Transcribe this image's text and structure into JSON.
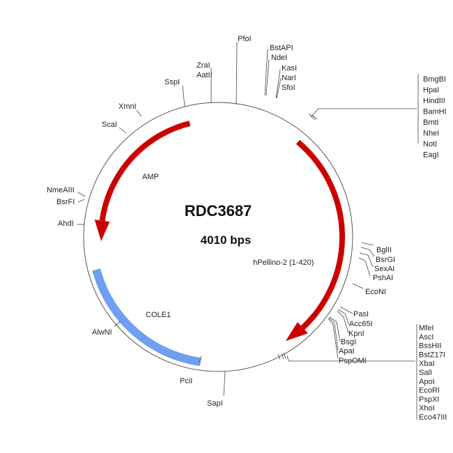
{
  "plasmid": {
    "name": "RDC3687",
    "size_label": "4010 bps"
  },
  "colors": {
    "backbone": "#555555",
    "arrow": "#cc0000",
    "ori": "#6f9ff0"
  },
  "features": [
    {
      "name": "AMP",
      "type": "arrow",
      "direction": "counterclockwise"
    },
    {
      "name": "hPellino-2 (1-420)",
      "type": "arrow",
      "direction": "clockwise"
    },
    {
      "name": "COLE1",
      "type": "block"
    }
  ],
  "sites": {
    "top": [
      "PfoI",
      "ZraI",
      "AatII",
      "SspI",
      "XmnI",
      "ScaI",
      "BstAPI",
      "NdeI",
      "KasI",
      "NarI",
      "SfoI"
    ],
    "left": [
      "NmeAIII",
      "BsrFI",
      "AhdI",
      "AlwNI",
      "PciI",
      "SapI"
    ],
    "right": [
      "BglII",
      "BsrGI",
      "SexAI",
      "PshAI",
      "EcoNI",
      "PasI",
      "Acc65I",
      "KpnI",
      "BsgI",
      "ApaI",
      "PspOMI"
    ],
    "group_top_right": [
      "BmgBI",
      "HpaI",
      "HindIII",
      "BamHI",
      "BmtI",
      "NheI",
      "NotI",
      "EagI"
    ],
    "group_bottom_right": [
      "MfeI",
      "AscI",
      "BssHII",
      "BstZ17I",
      "XbaI",
      "SalI",
      "ApoI",
      "EcoRI",
      "PspXI",
      "XhoI",
      "Eco47III"
    ]
  }
}
